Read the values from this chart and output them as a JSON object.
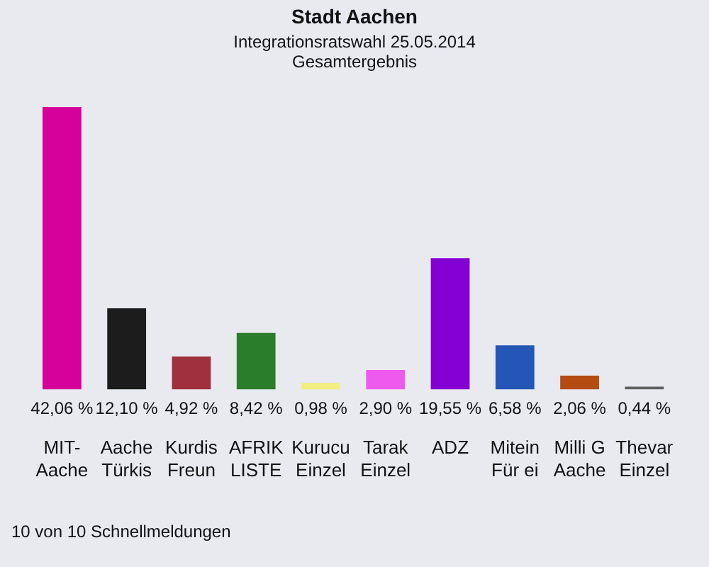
{
  "chart_data": {
    "type": "bar",
    "title": "Stadt Aachen",
    "subtitle": "Integrationsratswahl 25.05.2014\nGesamtergebnis",
    "categories": [
      "MIT-\nAache",
      "Aache\nTürkis",
      "Kurdis\nFreun",
      "AFRIK\nLISTE",
      "Kurucu\nEinzel",
      "Tarak\nEinzel",
      "ADZ",
      "Mitein\nFür ei",
      "Milli G\nAache",
      "Thevar\nEinzel"
    ],
    "values": [
      42.06,
      12.1,
      4.92,
      8.42,
      0.98,
      2.9,
      19.55,
      6.58,
      2.06,
      0.44
    ],
    "colors": [
      "#d6009a",
      "#1c1c1c",
      "#a0303e",
      "#2a7d2a",
      "#f2ee80",
      "#ee5aee",
      "#8400d2",
      "#2456b8",
      "#b44c12",
      "#606060"
    ],
    "value_labels": [
      "42,06 %",
      "12,10 %",
      "4,92 %",
      "8,42 %",
      "0,98 %",
      "2,90 %",
      "19,55 %",
      "6,58 %",
      "2,06 %",
      "0,44 %"
    ],
    "annotations": [
      "10 von 10 Schnellmeldungen"
    ]
  }
}
